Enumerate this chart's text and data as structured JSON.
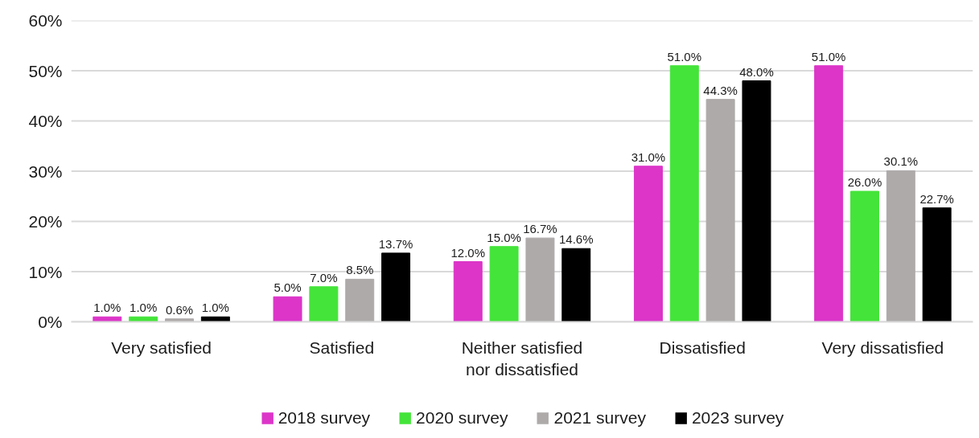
{
  "chart_data": {
    "type": "bar",
    "categories": [
      "Very satisfied",
      "Satisfied",
      "Neither satisfied nor dissatisfied",
      "Dissatisfied",
      "Very dissatisfied"
    ],
    "series": [
      {
        "name": "2018 survey",
        "color": "#dc35c8",
        "values": [
          1.0,
          5.0,
          12.0,
          31.0,
          51.0
        ],
        "value_labels": [
          "1.0%",
          "5.0%",
          "12.0%",
          "31.0%",
          "51.0%"
        ]
      },
      {
        "name": "2020 survey",
        "color": "#44e43a",
        "values": [
          1.0,
          7.0,
          15.0,
          51.0,
          26.0
        ],
        "value_labels": [
          "1.0%",
          "7.0%",
          "15.0%",
          "51.0%",
          "26.0%"
        ]
      },
      {
        "name": "2021 survey",
        "color": "#aeaaaa",
        "values": [
          0.6,
          8.5,
          16.7,
          44.3,
          30.1
        ],
        "value_labels": [
          "0.6%",
          "8.5%",
          "16.7%",
          "44.3%",
          "30.1%"
        ]
      },
      {
        "name": "2023 survey",
        "color": "#000000",
        "values": [
          1.0,
          13.7,
          14.6,
          48.0,
          22.7
        ],
        "value_labels": [
          "1.0%",
          "13.7%",
          "14.6%",
          "48.0%",
          "22.7%"
        ]
      }
    ],
    "ylim": [
      0,
      60
    ],
    "yticks": [
      {
        "value": 0,
        "label": "0%"
      },
      {
        "value": 10,
        "label": "10%"
      },
      {
        "value": 20,
        "label": "20%"
      },
      {
        "value": 30,
        "label": "30%"
      },
      {
        "value": 40,
        "label": "40%"
      },
      {
        "value": 50,
        "label": "50%"
      },
      {
        "value": 60,
        "label": "60%"
      }
    ],
    "grid": "y",
    "legend": "bottom"
  }
}
